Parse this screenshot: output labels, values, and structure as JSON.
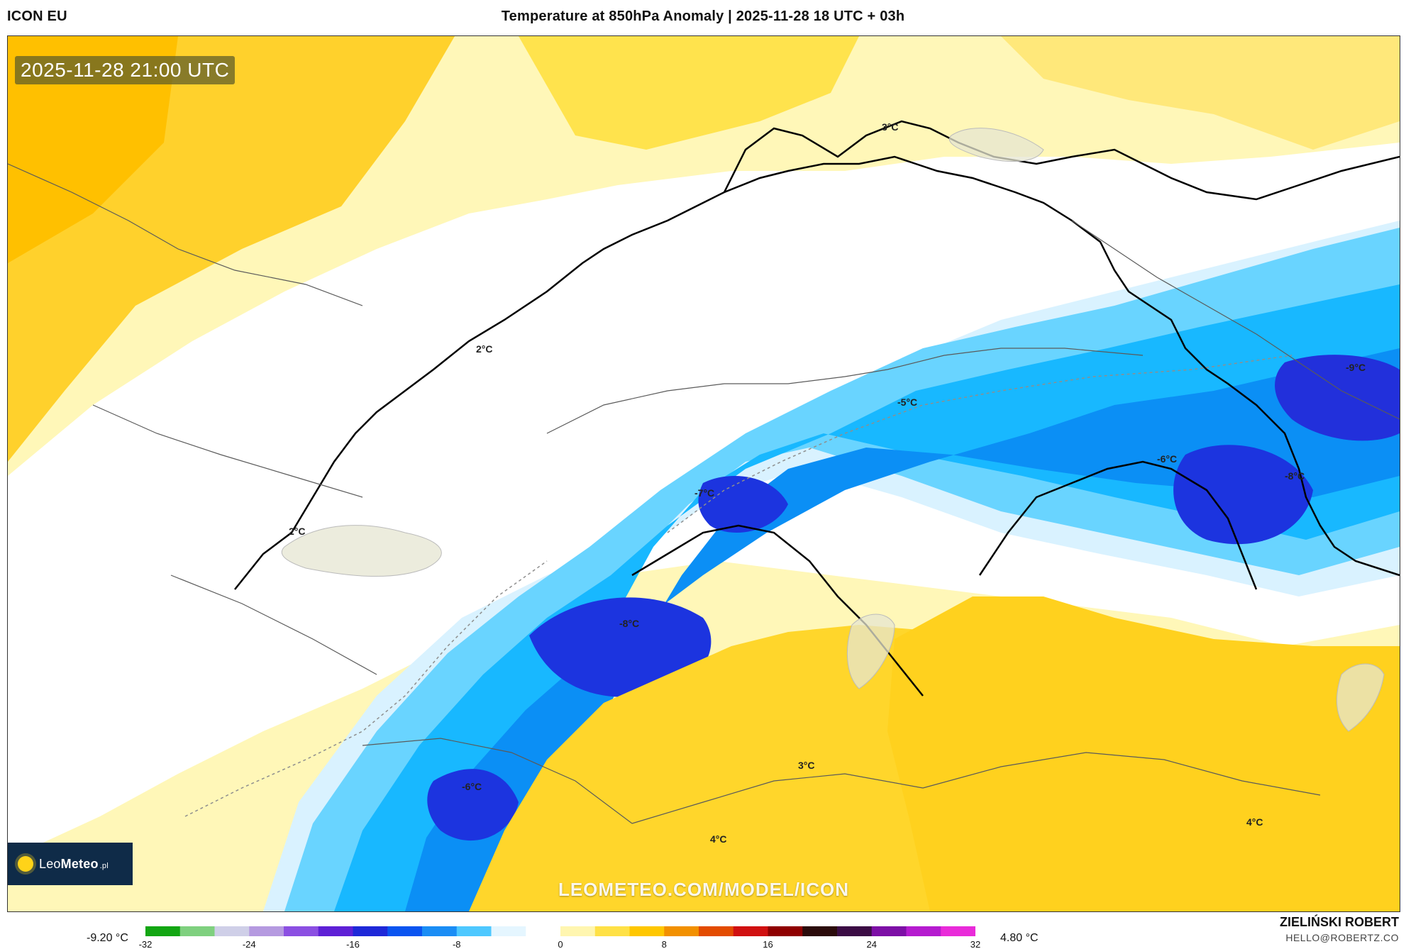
{
  "header": {
    "model": "ICON EU",
    "title": "Temperature at 850hPa Anomaly | 2025-11-28 18 UTC + 03h"
  },
  "overlay": {
    "timestamp": "2025-11-28 21:00 UTC",
    "watermark": "LEOMETEO.COM/MODEL/ICON",
    "logo_text_light": "Leo",
    "logo_text_bold": "Meteo",
    "logo_suffix": ".pl"
  },
  "labels": [
    {
      "text": "3°C"
    },
    {
      "text": "2°C"
    },
    {
      "text": "-5°C"
    },
    {
      "text": "-9°C"
    },
    {
      "text": "-6°C"
    },
    {
      "text": "-8°C"
    },
    {
      "text": "-7°C"
    },
    {
      "text": "2°C"
    },
    {
      "text": "-8°C"
    },
    {
      "text": "-6°C"
    },
    {
      "text": "3°C"
    },
    {
      "text": "4°C"
    },
    {
      "text": "4°C"
    }
  ],
  "legend": {
    "min_value": "-9.20 °C",
    "max_value": "4.80 °C",
    "ticks": [
      "-32",
      "-24",
      "-16",
      "-8",
      "0",
      "8",
      "16",
      "24",
      "32"
    ],
    "colors": [
      "#13a613",
      "#7fd07f",
      "#cfcfe8",
      "#b59ae0",
      "#8b4fe2",
      "#5e20d6",
      "#1e28d8",
      "#0a54f0",
      "#1a8df5",
      "#4ec8ff",
      "#e5f6ff",
      "#ffffff",
      "#fff6b0",
      "#ffe146",
      "#ffc700",
      "#f29000",
      "#e34b00",
      "#d01010",
      "#8f0000",
      "#2b0b0b",
      "#3b0c44",
      "#7d0fa6",
      "#b51bcf",
      "#e92bd9"
    ]
  },
  "credits": {
    "name": "ZIELIŃSKI ROBERT",
    "email": "HELLO@ROBERTZ.CO"
  }
}
